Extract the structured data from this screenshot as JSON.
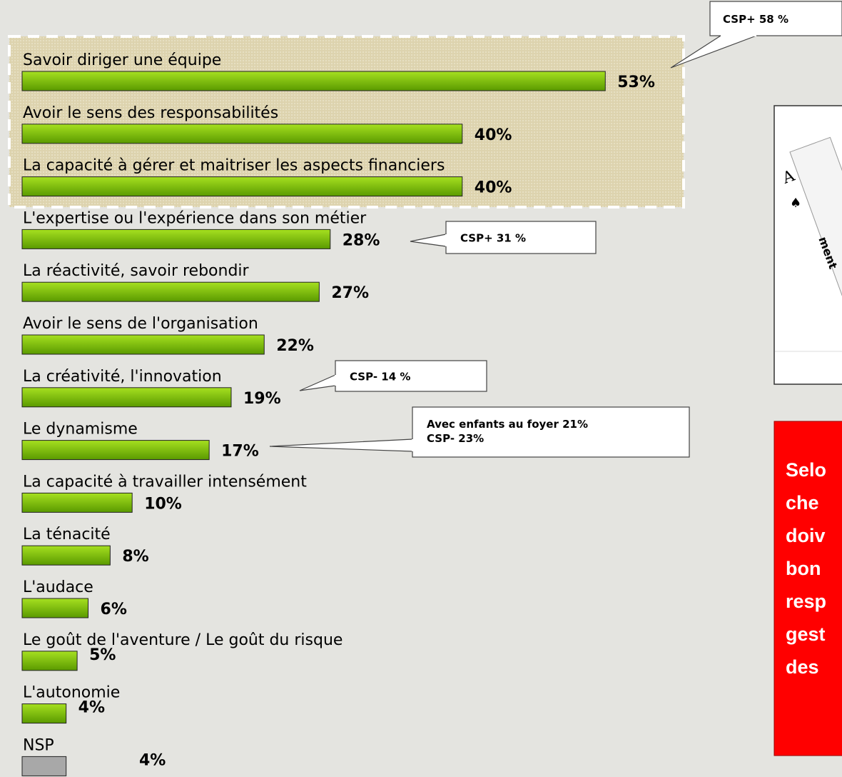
{
  "chart_data": {
    "type": "bar",
    "categories": [
      "Savoir diriger une équipe",
      "Avoir le sens des responsabilités",
      "La capacité à gérer et maitriser les aspects financiers",
      "L'expertise ou l'expérience dans son métier",
      "La réactivité, savoir rebondir",
      "Avoir le sens de l'organisation",
      "La créativité, l'innovation",
      "Le dynamisme",
      "La capacité à travailler intensément",
      "La ténacité",
      "L'audace",
      "Le goût de l'aventure / Le goût du risque",
      "L'autonomie",
      "NSP"
    ],
    "values": [
      53,
      40,
      40,
      28,
      27,
      22,
      19,
      17,
      10,
      8,
      6,
      5,
      4,
      4
    ],
    "value_labels": [
      "53%",
      "40%",
      "40%",
      "28%",
      "27%",
      "22%",
      "19%",
      "17%",
      "10%",
      "8%",
      "6%",
      "5%",
      "4%",
      "4%"
    ],
    "colors": [
      "#76b800",
      "#76b800",
      "#76b800",
      "#76b800",
      "#76b800",
      "#76b800",
      "#76b800",
      "#76b800",
      "#76b800",
      "#76b800",
      "#76b800",
      "#76b800",
      "#76b800",
      "#a8a8a8"
    ],
    "annotations": [
      {
        "lines": [
          "CSP+ 58 %"
        ]
      },
      {
        "lines": [
          "CSP+ 31 %"
        ]
      },
      {
        "lines": [
          "CSP- 14 %"
        ]
      },
      {
        "lines": [
          "Avec enfants au foyer  21%",
          "CSP- 23%"
        ]
      }
    ]
  },
  "card": {
    "rank": "A",
    "suit": "♠",
    "text": "ment"
  },
  "side_note": {
    "lines": [
      "Selo",
      "che",
      "doiv",
      "bon",
      "resp",
      "gest",
      "des"
    ]
  }
}
